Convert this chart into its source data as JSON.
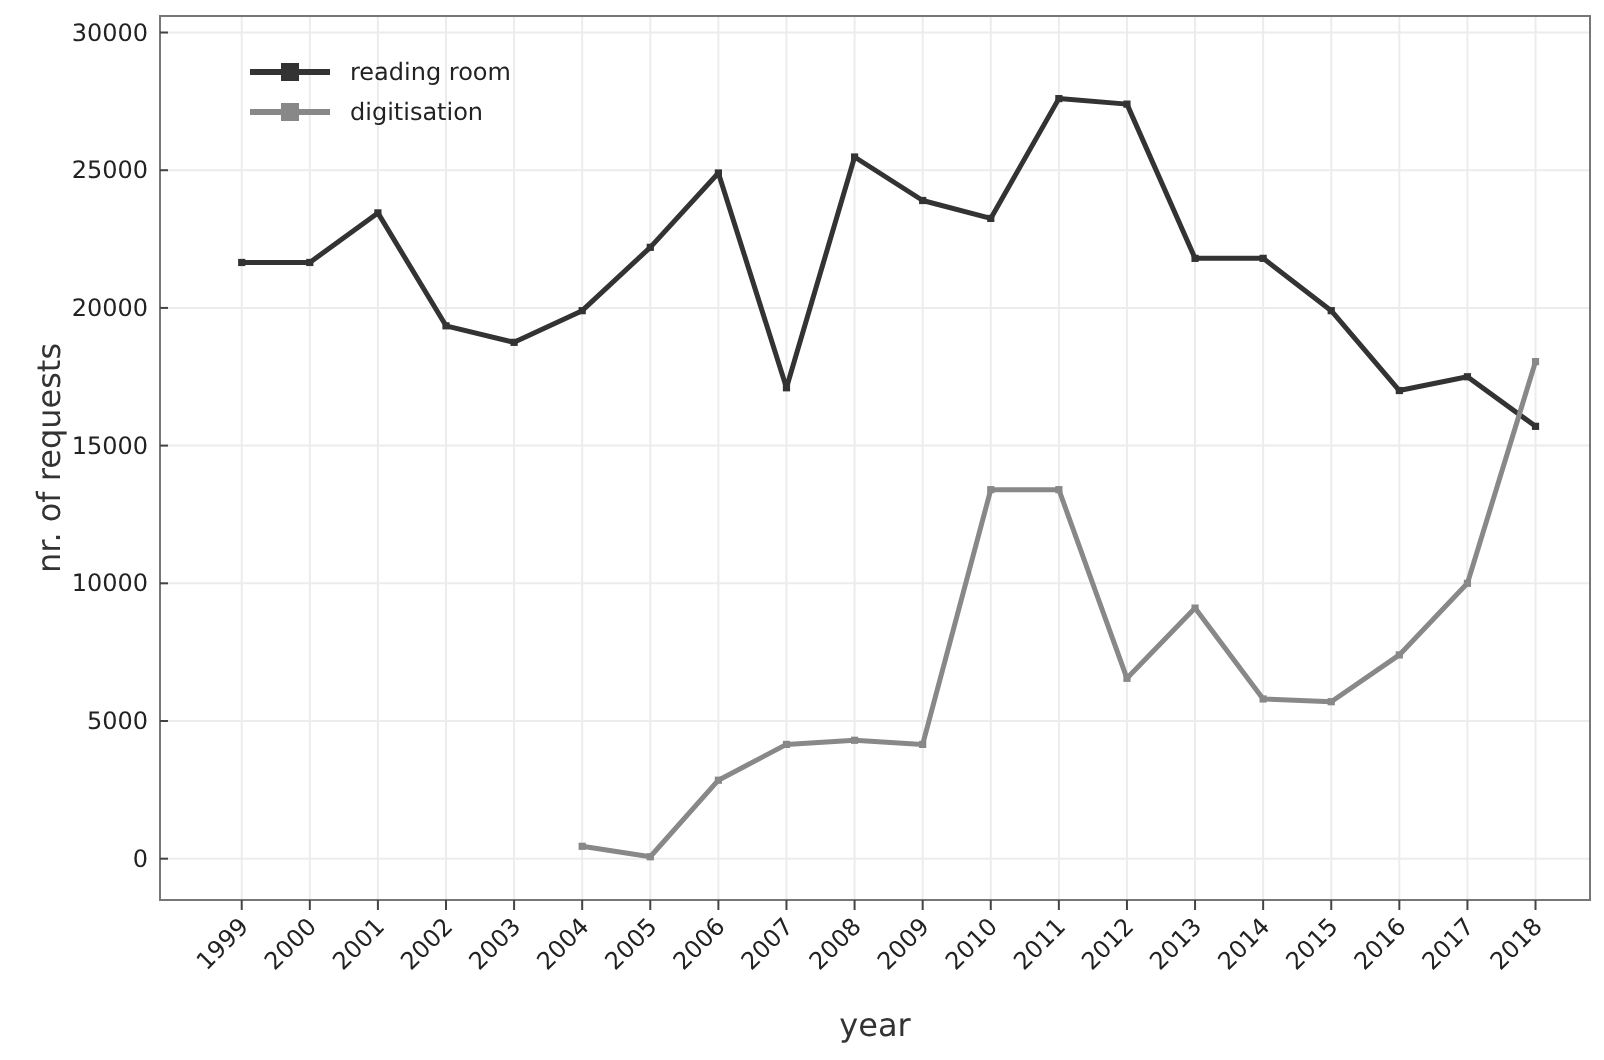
{
  "chart_data": {
    "type": "line",
    "xlabel": "year",
    "ylabel": "nr. of requests",
    "x": [
      1999,
      2000,
      2001,
      2002,
      2003,
      2004,
      2005,
      2006,
      2007,
      2008,
      2009,
      2010,
      2011,
      2012,
      2013,
      2014,
      2015,
      2016,
      2017,
      2018
    ],
    "xlim": [
      1997.8,
      2018.8
    ],
    "xticks": [
      1999,
      2000,
      2001,
      2002,
      2003,
      2004,
      2005,
      2006,
      2007,
      2008,
      2009,
      2010,
      2011,
      2012,
      2013,
      2014,
      2015,
      2016,
      2017,
      2018
    ],
    "ylim": [
      -1500,
      30600
    ],
    "yticks": [
      0,
      5000,
      10000,
      15000,
      20000,
      25000,
      30000
    ],
    "series": [
      {
        "name": "reading room",
        "color": "#333333",
        "values": [
          21650,
          21650,
          23450,
          19350,
          18750,
          19900,
          22200,
          24900,
          17100,
          25480,
          23900,
          23250,
          27600,
          27400,
          21800,
          21800,
          19900,
          17000,
          17500,
          15700
        ]
      },
      {
        "name": "digitisation",
        "color": "#888888",
        "values": [
          null,
          null,
          null,
          null,
          null,
          450,
          70,
          2850,
          4150,
          4300,
          4150,
          13400,
          13400,
          6550,
          9100,
          5800,
          5700,
          7400,
          10000,
          18050
        ]
      }
    ],
    "grid": true,
    "legend": "top left",
    "marker": "square",
    "line_style": "solid"
  }
}
